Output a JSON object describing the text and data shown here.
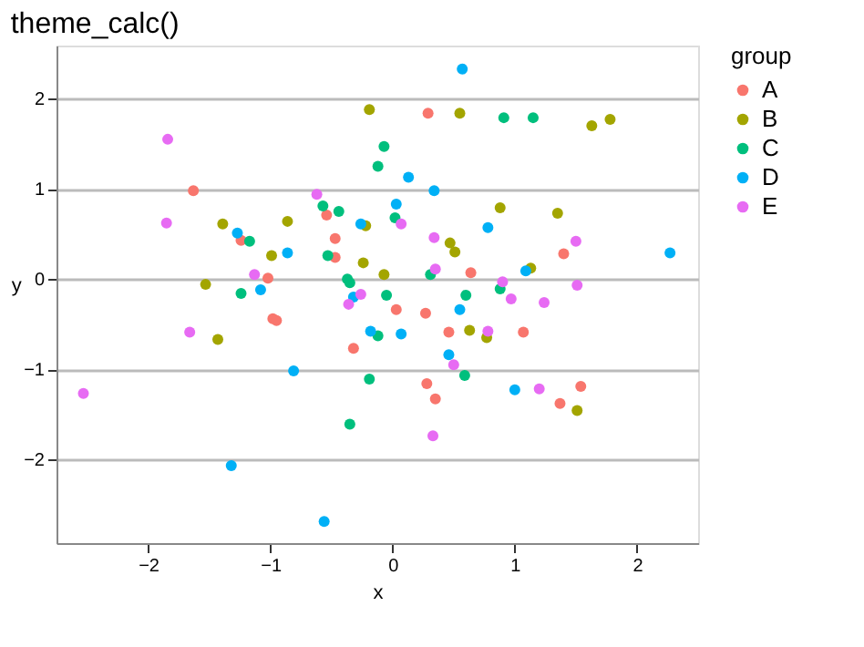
{
  "chart_data": {
    "type": "scatter",
    "title": "theme_calc()",
    "xlabel": "x",
    "ylabel": "y",
    "legend_title": "group",
    "xlim": [
      -2.75,
      2.5
    ],
    "xticks": [
      -2,
      -1,
      0,
      1,
      2
    ],
    "ylim": [
      -2.93,
      2.59
    ],
    "yticks": [
      -2,
      -1,
      0,
      1,
      2
    ],
    "grid": "y",
    "legend": "right",
    "marker": "circle",
    "series": [
      {
        "name": "A",
        "color": "#f8766d",
        "x": [
          -1.63,
          -0.54,
          -1.24,
          -0.47,
          -0.47,
          -1.02,
          -0.98,
          -0.95,
          -0.32,
          0.29,
          1.4,
          0.64,
          0.03,
          0.27,
          0.46,
          1.07,
          0.28,
          0.35,
          1.54,
          1.37
        ],
        "values": [
          0.98,
          0.71,
          0.43,
          0.45,
          0.24,
          0.01,
          -0.44,
          -0.46,
          -0.77,
          1.84,
          0.28,
          0.07,
          -0.34,
          -0.38,
          -0.59,
          -0.59,
          -1.16,
          -1.33,
          -1.19,
          -1.38
        ]
      },
      {
        "name": "B",
        "color": "#a3a500",
        "x": [
          -0.19,
          -1.39,
          -0.86,
          -0.22,
          -0.99,
          -0.24,
          -0.07,
          -1.53,
          -1.43,
          0.55,
          1.63,
          1.78,
          0.88,
          1.35,
          0.47,
          0.51,
          1.13,
          0.63,
          0.77,
          1.51
        ],
        "values": [
          1.88,
          0.61,
          0.64,
          0.59,
          0.26,
          0.18,
          0.05,
          -0.06,
          -0.67,
          1.84,
          1.7,
          1.77,
          0.79,
          0.73,
          0.4,
          0.3,
          0.12,
          -0.57,
          -0.65,
          -1.46
        ]
      },
      {
        "name": "C",
        "color": "#00bf7d",
        "x": [
          -0.07,
          -0.12,
          -0.57,
          -0.44,
          -1.17,
          -0.53,
          -0.37,
          -0.35,
          -1.24,
          -0.05,
          -0.12,
          -0.19,
          -0.35,
          0.91,
          1.15,
          0.02,
          0.31,
          0.88,
          0.6,
          0.59
        ],
        "values": [
          1.47,
          1.25,
          0.81,
          0.75,
          0.42,
          0.26,
          0.0,
          -0.04,
          -0.16,
          -0.18,
          -0.63,
          -1.11,
          -1.61,
          1.79,
          1.79,
          0.68,
          0.05,
          -0.11,
          -0.18,
          -1.07
        ]
      },
      {
        "name": "D",
        "color": "#00b0f6",
        "x": [
          -1.27,
          -0.26,
          -0.86,
          -1.08,
          -0.32,
          -0.18,
          -0.81,
          -1.32,
          -0.56,
          0.57,
          0.13,
          0.34,
          0.03,
          0.78,
          2.27,
          1.09,
          0.55,
          0.07,
          0.46,
          1.0
        ],
        "values": [
          0.51,
          0.61,
          0.29,
          -0.12,
          -0.2,
          -0.58,
          -1.02,
          -2.07,
          -2.69,
          2.33,
          1.13,
          0.98,
          0.83,
          0.57,
          0.29,
          0.09,
          -0.34,
          -0.61,
          -0.84,
          -1.23
        ]
      },
      {
        "name": "E",
        "color": "#e76bf3",
        "x": [
          -1.84,
          -0.62,
          -1.85,
          -1.13,
          -0.36,
          -0.26,
          -1.66,
          -2.53,
          0.07,
          0.34,
          1.5,
          0.35,
          0.9,
          1.51,
          0.97,
          1.24,
          0.78,
          0.5,
          1.2,
          0.33
        ],
        "values": [
          1.55,
          0.94,
          0.62,
          0.05,
          -0.28,
          -0.17,
          -0.59,
          -1.27,
          0.61,
          0.46,
          0.42,
          0.11,
          -0.03,
          -0.07,
          -0.22,
          -0.26,
          -0.58,
          -0.95,
          -1.22,
          -1.74
        ]
      }
    ]
  }
}
